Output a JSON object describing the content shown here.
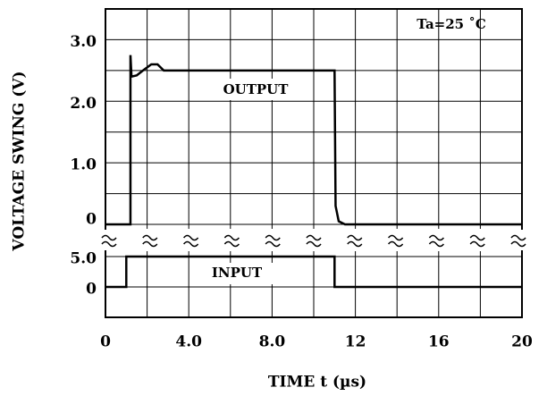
{
  "chart_data": [
    {
      "type": "line",
      "ylabel": "VOLTAGE SWING (V)",
      "annotation": "Ta=25 ˚C",
      "xlim": [
        0,
        20
      ],
      "ylim": [
        0,
        3.5
      ],
      "yticks": [
        0,
        {
          "value": 1,
          "label": "1.0"
        },
        {
          "value": 2,
          "label": "2.0"
        },
        {
          "value": 3,
          "label": "3.0"
        }
      ],
      "y_minor_ticks": [
        0.5,
        1.5,
        2.5
      ],
      "grid": true,
      "series": [
        {
          "name": "OUTPUT",
          "color": "#000000",
          "x": [
            0,
            1.2,
            1.2,
            1.25,
            1.5,
            1.8,
            2.2,
            2.5,
            2.8,
            3.0,
            11.0,
            11.05,
            11.2,
            11.5,
            20
          ],
          "values": [
            0,
            0,
            2.75,
            2.4,
            2.42,
            2.5,
            2.6,
            2.6,
            2.5,
            2.5,
            2.5,
            0.3,
            0.05,
            0,
            0
          ]
        }
      ]
    },
    {
      "type": "line",
      "xlabel": "TIME t (µs)",
      "xlim": [
        0,
        20
      ],
      "xticks": [
        0,
        {
          "value": 4,
          "label": "4.0"
        },
        {
          "value": 8,
          "label": "8.0"
        },
        12,
        16,
        20
      ],
      "x_minor_ticks": [
        2,
        6,
        10,
        14,
        18
      ],
      "ylim": [
        -5,
        5
      ],
      "yticks": [
        0,
        {
          "value": 5,
          "label": "5.0"
        }
      ],
      "grid": true,
      "series": [
        {
          "name": "INPUT",
          "color": "#000000",
          "x": [
            0,
            1,
            1,
            11,
            11,
            20
          ],
          "values": [
            0,
            0,
            5,
            5,
            0,
            0
          ]
        }
      ]
    }
  ]
}
